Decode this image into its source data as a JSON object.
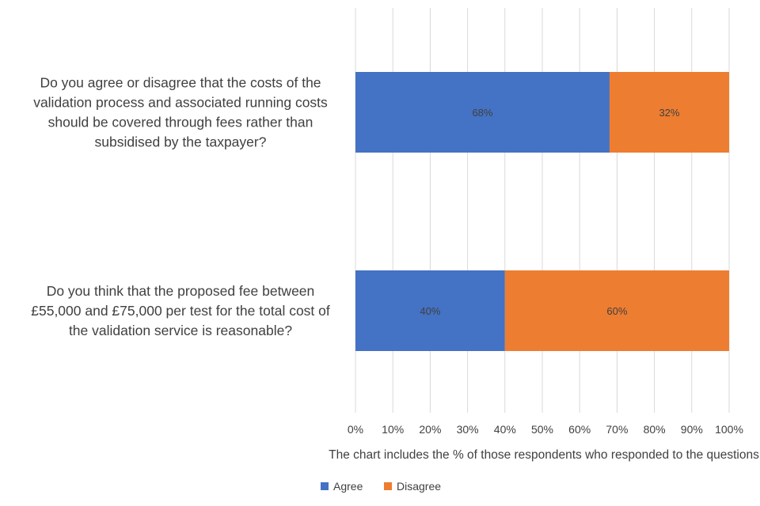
{
  "chart_data": {
    "type": "bar",
    "orientation": "horizontal",
    "stacked": true,
    "percent": true,
    "categories": [
      "Do you agree or disagree that the costs of the validation process and associated running costs should be covered through fees rather than subsidised by the taxpayer?",
      "Do you think that the proposed fee between £55,000 and £75,000 per test for the total cost of the validation service is reasonable?"
    ],
    "category_lines": [
      [
        "Do you agree or disagree that the costs of the",
        "validation process and associated running costs",
        "should be covered through fees rather than",
        "subsidised by the taxpayer?"
      ],
      [
        "Do you think that the proposed fee between",
        "£55,000 and £75,000 per test for the total cost of",
        "the validation service is reasonable?"
      ]
    ],
    "series": [
      {
        "name": "Agree",
        "color": "#4472c4",
        "values": [
          68,
          40
        ],
        "labels": [
          "68%",
          "40%"
        ]
      },
      {
        "name": "Disagree",
        "color": "#ed7d31",
        "values": [
          32,
          60
        ],
        "labels": [
          "32%",
          "60%"
        ]
      }
    ],
    "xlim": [
      0,
      100
    ],
    "xticks": [
      0,
      10,
      20,
      30,
      40,
      50,
      60,
      70,
      80,
      90,
      100
    ],
    "xtick_labels": [
      "0%",
      "10%",
      "20%",
      "30%",
      "40%",
      "50%",
      "60%",
      "70%",
      "80%",
      "90%",
      "100%"
    ],
    "xlabel": "The chart includes the % of those respondents who responded to the questions",
    "ylabel": "",
    "title": "",
    "grid": true,
    "gridline_color": "#d9d9d9",
    "legend_position": "bottom"
  }
}
